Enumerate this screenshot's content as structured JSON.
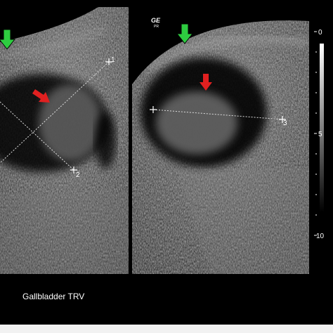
{
  "image": {
    "logo": "GE",
    "logo_sub": "PR",
    "caption": "Gallbladder TRV",
    "calipers": [
      "1",
      "2",
      "3"
    ],
    "depth_scale": [
      "0",
      "5",
      "10"
    ]
  }
}
